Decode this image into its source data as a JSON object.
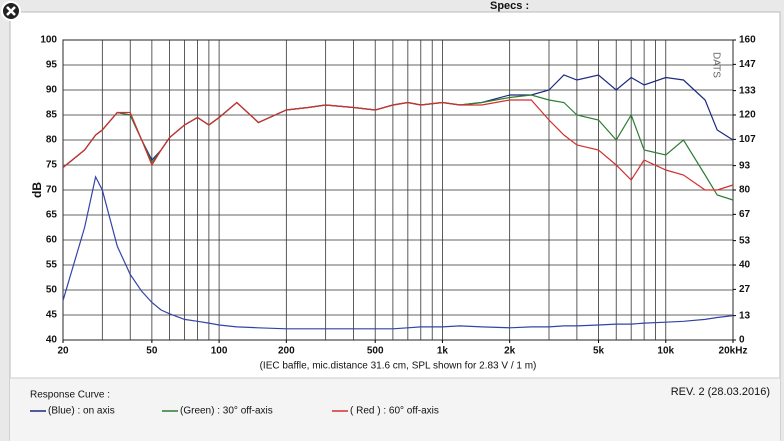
{
  "header": {
    "title": "Specs :"
  },
  "chart_data": {
    "type": "line",
    "xscale": "log",
    "grid": true,
    "ylabel": "dB",
    "watermark": "DATS",
    "caption": "(IEC baffle, mic.distance 31.6 cm, SPL shown for 2.83 V / 1 m)",
    "legend_title": "Response Curve :",
    "revision": "REV. 2 (28.03.2016)",
    "xlim": [
      20,
      20000
    ],
    "xticks": [
      20,
      50,
      100,
      200,
      500,
      {
        "value": 1000,
        "label": "1k"
      },
      {
        "value": 2000,
        "label": "2k"
      },
      {
        "value": 5000,
        "label": "5k"
      },
      {
        "value": 10000,
        "label": "10k"
      },
      {
        "value": 20000,
        "label": "20kHz"
      }
    ],
    "xgrid": [
      20,
      30,
      40,
      50,
      60,
      70,
      80,
      90,
      100,
      200,
      300,
      400,
      500,
      600,
      700,
      800,
      900,
      1000,
      2000,
      3000,
      4000,
      5000,
      6000,
      7000,
      8000,
      9000,
      10000,
      20000
    ],
    "ylim": [
      40,
      100
    ],
    "yticks": [
      40,
      45,
      50,
      55,
      60,
      65,
      70,
      75,
      80,
      85,
      90,
      95,
      100
    ],
    "y2lim": [
      0,
      160
    ],
    "y2ticks": [
      0,
      13,
      27,
      40,
      53,
      67,
      80,
      93,
      107,
      120,
      133,
      147,
      160
    ],
    "x": [
      20,
      25,
      28,
      30,
      35,
      40,
      45,
      50,
      55,
      60,
      70,
      80,
      90,
      100,
      120,
      150,
      200,
      250,
      300,
      400,
      500,
      600,
      700,
      800,
      1000,
      1200,
      1500,
      2000,
      2500,
      3000,
      3500,
      4000,
      5000,
      6000,
      7000,
      8000,
      10000,
      12000,
      15000,
      17000,
      20000
    ],
    "series": [
      {
        "name": "(Blue) : on axis",
        "color": "#1c2a80",
        "values": [
          74.5,
          78,
          81,
          82,
          85.5,
          85,
          80,
          76,
          78,
          80.5,
          83,
          84.5,
          83,
          84.5,
          87.5,
          83.5,
          86,
          86.5,
          87,
          86.5,
          86,
          87,
          87.5,
          87,
          87.5,
          87,
          87.5,
          89,
          89,
          90,
          93,
          92,
          93,
          90,
          92.5,
          91,
          92.5,
          92,
          88,
          82,
          80
        ]
      },
      {
        "name": "(Green) : 30° off-axis",
        "color": "#2e7d32",
        "values": [
          74.5,
          78,
          81,
          82,
          85.5,
          85,
          80,
          75.5,
          78,
          80.5,
          83,
          84.5,
          83,
          84.5,
          87.5,
          83.5,
          86,
          86.5,
          87,
          86.5,
          86,
          87,
          87.5,
          87,
          87.5,
          87,
          87.5,
          88.5,
          89,
          88,
          87.5,
          85,
          84,
          80,
          85,
          78,
          77,
          80,
          73,
          69,
          68
        ]
      },
      {
        "name": "( Red ) : 60° off-axis",
        "color": "#d32f2f",
        "values": [
          74.5,
          78,
          81,
          82,
          85.5,
          85.5,
          80,
          75,
          78,
          80.5,
          83,
          84.5,
          83,
          84.5,
          87.5,
          83.5,
          86,
          86.5,
          87,
          86.5,
          86,
          87,
          87.5,
          87,
          87.5,
          87,
          87,
          88,
          88,
          84,
          81,
          79,
          78,
          75,
          72,
          76,
          74,
          73,
          70,
          70,
          71
        ]
      },
      {
        "color": "#3344a8",
        "axis": "y2",
        "values": [
          21,
          60,
          87,
          80,
          50,
          35,
          26,
          20,
          16,
          14,
          11,
          10,
          9,
          8,
          7,
          6.5,
          6,
          6,
          6,
          6,
          6,
          6,
          6.5,
          7,
          7,
          7.5,
          7,
          6.5,
          7,
          7,
          7.5,
          7.5,
          8,
          8.5,
          8.5,
          9,
          9.5,
          10,
          11,
          12,
          13
        ]
      }
    ]
  }
}
